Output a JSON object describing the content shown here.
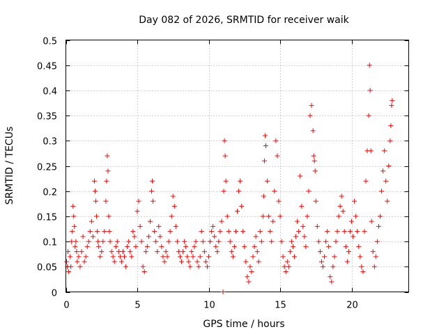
{
  "chart_data": {
    "type": "scatter",
    "title": "Day 082 of 2026, SRMTID for receiver waik",
    "xlabel": "GPS time / hours",
    "ylabel": "SRMTID / TECUs",
    "xlim": [
      0,
      24
    ],
    "ylim": [
      0,
      0.5
    ],
    "xticks": [
      0,
      5,
      10,
      15,
      20
    ],
    "xtick_labels": [
      "0",
      "5",
      "10",
      "15",
      "20"
    ],
    "yticks": [
      0,
      0.05,
      0.1,
      0.15,
      0.2,
      0.25,
      0.3,
      0.35,
      0.4,
      0.45,
      0.5
    ],
    "ytick_labels": [
      "0",
      "0.05",
      "0.1",
      "0.15",
      "0.2",
      "0.25",
      "0.3",
      "0.35",
      "0.4",
      "0.45",
      "0.5"
    ],
    "grid": true,
    "marker": "+",
    "color": "#ff0000",
    "series": [
      {
        "name": "SRMTID",
        "x": [
          0.05,
          0.1,
          0.15,
          0.2,
          0.3,
          0.35,
          0.4,
          0.45,
          0.5,
          0.55,
          0.6,
          0.65,
          0.7,
          0.75,
          0.8,
          0.9,
          1.0,
          1.1,
          1.2,
          1.3,
          1.4,
          1.5,
          1.6,
          1.7,
          1.8,
          1.9,
          2.0,
          2.05,
          2.1,
          2.15,
          2.2,
          2.25,
          2.3,
          2.4,
          2.5,
          2.6,
          2.7,
          2.8,
          2.85,
          2.9,
          2.95,
          3.0,
          3.05,
          3.1,
          3.2,
          3.3,
          3.4,
          3.5,
          3.6,
          3.7,
          3.8,
          3.9,
          4.0,
          4.1,
          4.2,
          4.3,
          4.4,
          4.5,
          4.6,
          4.7,
          4.8,
          4.9,
          5.0,
          5.1,
          5.2,
          5.3,
          5.4,
          5.5,
          5.6,
          5.7,
          5.8,
          5.9,
          6.0,
          6.05,
          6.1,
          6.2,
          6.3,
          6.4,
          6.5,
          6.6,
          6.7,
          6.8,
          6.9,
          7.0,
          7.1,
          7.2,
          7.3,
          7.4,
          7.5,
          7.6,
          7.7,
          7.8,
          7.9,
          8.0,
          8.1,
          8.2,
          8.3,
          8.4,
          8.5,
          8.6,
          8.7,
          8.8,
          8.9,
          9.0,
          9.1,
          9.2,
          9.3,
          9.4,
          9.5,
          9.6,
          9.7,
          9.8,
          9.9,
          10.0,
          10.1,
          10.2,
          10.3,
          10.4,
          10.5,
          10.6,
          10.7,
          10.8,
          10.9,
          11.0,
          11.05,
          11.1,
          11.15,
          11.2,
          11.3,
          11.4,
          11.5,
          11.6,
          11.7,
          11.8,
          11.9,
          12.0,
          12.1,
          12.2,
          12.3,
          12.4,
          12.5,
          12.6,
          12.7,
          12.8,
          12.9,
          13.0,
          13.1,
          13.2,
          13.3,
          13.4,
          13.5,
          13.6,
          13.7,
          13.8,
          13.85,
          13.9,
          13.95,
          14.0,
          14.1,
          14.2,
          14.3,
          14.4,
          14.5,
          14.6,
          14.7,
          14.8,
          14.9,
          15.0,
          15.1,
          15.2,
          15.3,
          15.4,
          15.5,
          15.6,
          15.7,
          15.8,
          15.9,
          16.0,
          16.1,
          16.2,
          16.3,
          16.4,
          16.5,
          16.6,
          16.7,
          16.8,
          16.9,
          17.0,
          17.1,
          17.2,
          17.3,
          17.35,
          17.4,
          17.45,
          17.5,
          17.6,
          17.7,
          17.8,
          17.9,
          18.0,
          18.1,
          18.2,
          18.3,
          18.4,
          18.5,
          18.6,
          18.7,
          18.8,
          18.9,
          19.0,
          19.1,
          19.2,
          19.3,
          19.4,
          19.5,
          19.6,
          19.7,
          19.8,
          19.9,
          20.0,
          20.1,
          20.2,
          20.3,
          20.4,
          20.5,
          20.6,
          20.7,
          20.8,
          20.9,
          21.0,
          21.1,
          21.2,
          21.25,
          21.3,
          21.35,
          21.4,
          21.5,
          21.6,
          21.7,
          21.8,
          21.9,
          22.0,
          22.1,
          22.2,
          22.3,
          22.4,
          22.5,
          22.6,
          22.7,
          22.75,
          22.8,
          22.85
        ],
        "y": [
          0.06,
          0.05,
          0.08,
          0.04,
          0.07,
          0.05,
          0.1,
          0.12,
          0.17,
          0.15,
          0.13,
          0.09,
          0.1,
          0.08,
          0.06,
          0.07,
          0.05,
          0.08,
          0.11,
          0.06,
          0.07,
          0.09,
          0.1,
          0.12,
          0.14,
          0.11,
          0.22,
          0.2,
          0.18,
          0.15,
          0.12,
          0.1,
          0.09,
          0.07,
          0.08,
          0.1,
          0.12,
          0.18,
          0.22,
          0.27,
          0.24,
          0.15,
          0.12,
          0.1,
          0.08,
          0.07,
          0.06,
          0.09,
          0.1,
          0.08,
          0.07,
          0.06,
          0.08,
          0.07,
          0.05,
          0.09,
          0.1,
          0.08,
          0.07,
          0.12,
          0.11,
          0.09,
          0.16,
          0.18,
          0.13,
          0.1,
          0.05,
          0.04,
          0.08,
          0.09,
          0.11,
          0.14,
          0.2,
          0.22,
          0.18,
          0.12,
          0.1,
          0.08,
          0.13,
          0.11,
          0.09,
          0.07,
          0.06,
          0.08,
          0.07,
          0.1,
          0.12,
          0.15,
          0.19,
          0.17,
          0.13,
          0.1,
          0.08,
          0.07,
          0.06,
          0.08,
          0.1,
          0.09,
          0.07,
          0.06,
          0.05,
          0.08,
          0.07,
          0.09,
          0.1,
          0.06,
          0.05,
          0.07,
          0.12,
          0.1,
          0.08,
          0.06,
          0.05,
          0.07,
          0.1,
          0.12,
          0.13,
          0.11,
          0.09,
          0.08,
          0.1,
          0.12,
          0.14,
          0.0,
          0.2,
          0.3,
          0.27,
          0.22,
          0.15,
          0.12,
          0.1,
          0.08,
          0.07,
          0.09,
          0.12,
          0.16,
          0.2,
          0.22,
          0.17,
          0.12,
          0.09,
          0.06,
          0.03,
          0.02,
          0.05,
          0.04,
          0.07,
          0.09,
          0.11,
          0.08,
          0.06,
          0.12,
          0.1,
          0.15,
          0.19,
          0.26,
          0.31,
          0.29,
          0.22,
          0.15,
          0.12,
          0.1,
          0.14,
          0.2,
          0.3,
          0.27,
          0.18,
          0.15,
          0.1,
          0.07,
          0.05,
          0.04,
          0.06,
          0.05,
          0.08,
          0.1,
          0.09,
          0.07,
          0.11,
          0.14,
          0.12,
          0.23,
          0.17,
          0.13,
          0.11,
          0.09,
          0.15,
          0.2,
          0.35,
          0.37,
          0.32,
          0.27,
          0.26,
          0.24,
          0.18,
          0.13,
          0.1,
          0.08,
          0.06,
          0.05,
          0.07,
          0.1,
          0.12,
          0.09,
          0.03,
          0.02,
          0.05,
          0.07,
          0.1,
          0.12,
          0.15,
          0.17,
          0.19,
          0.16,
          0.12,
          0.09,
          0.06,
          0.08,
          0.12,
          0.14,
          0.11,
          0.18,
          0.15,
          0.12,
          0.09,
          0.07,
          0.05,
          0.04,
          0.12,
          0.22,
          0.28,
          0.35,
          0.45,
          0.4,
          0.28,
          0.14,
          0.08,
          0.05,
          0.07,
          0.1,
          0.13,
          0.15,
          0.2,
          0.24,
          0.28,
          0.22,
          0.18,
          0.25,
          0.3,
          0.33,
          0.37,
          0.38
        ]
      }
    ]
  }
}
